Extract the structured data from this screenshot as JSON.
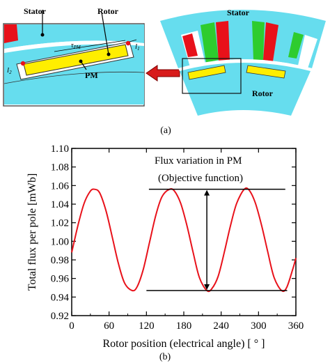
{
  "figure_a": {
    "caption": "(a)",
    "zoom_labels": {
      "stator": "Stator",
      "rotor": "Rotor",
      "pm": "PM",
      "tau_pm": "τ",
      "tau_pm_sub": "PM",
      "l1": "l",
      "l1_sub": "1",
      "l2": "l",
      "l2_sub": "2"
    },
    "motor_labels": {
      "stator": "Stator",
      "rotor": "Rotor"
    },
    "colors": {
      "iron": "#66ddee",
      "coil_red": "#e8111a",
      "coil_green": "#2ecc2e",
      "magnet": "#ffee00",
      "arrow": "#d81b1b"
    }
  },
  "figure_b": {
    "caption": "(b)",
    "annotation_line1": "Flux variation in PM",
    "annotation_line2": "(Objective function)"
  },
  "chart_data": {
    "type": "line",
    "xlabel": "Rotor position (electrical angle) [ ° ]",
    "ylabel": "Total flux per pole [mWb]",
    "xlim": [
      0,
      360
    ],
    "ylim": [
      0.92,
      1.1
    ],
    "xticks": [
      0,
      60,
      120,
      180,
      240,
      300,
      360
    ],
    "yticks": [
      0.92,
      0.94,
      0.96,
      0.98,
      1.0,
      1.02,
      1.04,
      1.06,
      1.08,
      1.1
    ],
    "grid": false,
    "series": [
      {
        "color": "#e8111a",
        "x": [
          0,
          10,
          20,
          30,
          37,
          45,
          55,
          65,
          75,
          85,
          97,
          105,
          115,
          125,
          135,
          145,
          157,
          165,
          175,
          185,
          195,
          205,
          217,
          225,
          235,
          245,
          255,
          265,
          277,
          285,
          295,
          305,
          315,
          325,
          337,
          345,
          355,
          360
        ],
        "y": [
          0.988,
          1.017,
          1.041,
          1.054,
          1.056,
          1.052,
          1.033,
          1.005,
          0.976,
          0.955,
          0.947,
          0.951,
          0.97,
          0.999,
          1.028,
          1.048,
          1.056,
          1.054,
          1.041,
          1.017,
          0.988,
          0.961,
          0.947,
          0.949,
          0.962,
          0.988,
          1.017,
          1.041,
          1.056,
          1.055,
          1.041,
          1.017,
          0.988,
          0.961,
          0.947,
          0.95,
          0.97,
          0.982
        ]
      }
    ],
    "reference_lines": {
      "max": 1.056,
      "min": 0.947,
      "max_x_range": [
        124,
        343
      ],
      "min_x_range": [
        120,
        346
      ]
    }
  }
}
